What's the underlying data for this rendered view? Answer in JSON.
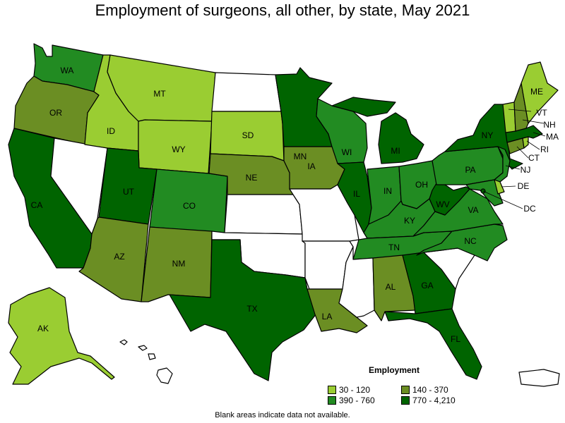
{
  "title": "Employment of surgeons, all other, by state, May 2021",
  "note": "Blank areas indicate data not available.",
  "colors": {
    "range1": "#9acd32",
    "range2": "#6b8e23",
    "range3": "#228b22",
    "range4": "#006400",
    "blank": "#ffffff"
  },
  "legend": {
    "title": "Employment",
    "items": [
      {
        "label": "30 - 120",
        "key": "range1"
      },
      {
        "label": "140 - 370",
        "key": "range2"
      },
      {
        "label": "390 - 760",
        "key": "range3"
      },
      {
        "label": "770 - 4,210",
        "key": "range4"
      }
    ]
  },
  "states": {
    "WA": {
      "label": "WA",
      "range": "range3"
    },
    "OR": {
      "label": "OR",
      "range": "range2"
    },
    "CA": {
      "label": "CA",
      "range": "range4"
    },
    "NV": {
      "label": "",
      "range": "blank"
    },
    "ID": {
      "label": "ID",
      "range": "range1"
    },
    "MT": {
      "label": "MT",
      "range": "range1"
    },
    "WY": {
      "label": "WY",
      "range": "range1"
    },
    "UT": {
      "label": "UT",
      "range": "range4"
    },
    "AZ": {
      "label": "AZ",
      "range": "range2"
    },
    "CO": {
      "label": "CO",
      "range": "range3"
    },
    "NM": {
      "label": "NM",
      "range": "range2"
    },
    "ND": {
      "label": "",
      "range": "blank"
    },
    "SD": {
      "label": "SD",
      "range": "range1"
    },
    "NE": {
      "label": "NE",
      "range": "range2"
    },
    "KS": {
      "label": "",
      "range": "blank"
    },
    "OK": {
      "label": "",
      "range": "blank"
    },
    "TX": {
      "label": "TX",
      "range": "range4"
    },
    "MN": {
      "label": "MN",
      "range": "range4"
    },
    "IA": {
      "label": "IA",
      "range": "range2"
    },
    "MO": {
      "label": "",
      "range": "blank"
    },
    "AR": {
      "label": "",
      "range": "blank"
    },
    "LA": {
      "label": "LA",
      "range": "range2"
    },
    "WI": {
      "label": "WI",
      "range": "range3"
    },
    "IL": {
      "label": "IL",
      "range": "range4"
    },
    "MI": {
      "label": "MI",
      "range": "range4"
    },
    "IN": {
      "label": "IN",
      "range": "range3"
    },
    "OH": {
      "label": "OH",
      "range": "range3"
    },
    "KY": {
      "label": "KY",
      "range": "range3"
    },
    "TN": {
      "label": "TN",
      "range": "range3"
    },
    "MS": {
      "label": "",
      "range": "blank"
    },
    "AL": {
      "label": "AL",
      "range": "range2"
    },
    "GA": {
      "label": "GA",
      "range": "range4"
    },
    "FL": {
      "label": "FL",
      "range": "range4"
    },
    "SC": {
      "label": "",
      "range": "blank"
    },
    "NC": {
      "label": "NC",
      "range": "range3"
    },
    "VA": {
      "label": "VA",
      "range": "range3"
    },
    "WV": {
      "label": "WV",
      "range": "range4"
    },
    "PA": {
      "label": "PA",
      "range": "range3"
    },
    "NY": {
      "label": "NY",
      "range": "range4"
    },
    "NJ": {
      "label": "NJ",
      "range": "range3"
    },
    "DE": {
      "label": "DE",
      "range": "range1"
    },
    "MD": {
      "label": "",
      "range": "range3"
    },
    "DC": {
      "label": "DC",
      "range": "range4"
    },
    "CT": {
      "label": "CT",
      "range": "range2"
    },
    "RI": {
      "label": "RI",
      "range": "range1"
    },
    "MA": {
      "label": "MA",
      "range": "range4"
    },
    "VT": {
      "label": "VT",
      "range": "range1"
    },
    "NH": {
      "label": "NH",
      "range": "range2"
    },
    "ME": {
      "label": "ME",
      "range": "range1"
    },
    "AK": {
      "label": "AK",
      "range": "range1"
    },
    "HI": {
      "label": "",
      "range": "blank"
    },
    "PR": {
      "label": "",
      "range": "blank"
    }
  }
}
